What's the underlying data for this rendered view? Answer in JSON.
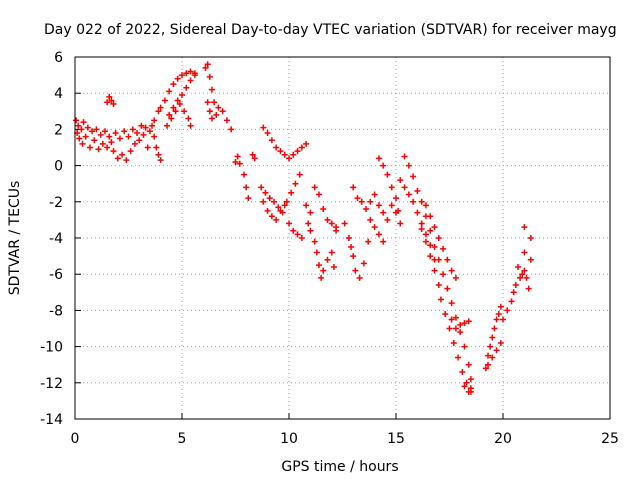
{
  "chart_data": {
    "type": "scatter",
    "title": "Day 022 of 2022, Sidereal Day-to-day VTEC variation (SDTVAR) for receiver mayg",
    "xlabel": "GPS time / hours",
    "ylabel": "SDTVAR / TECUs",
    "xlim": [
      0,
      25
    ],
    "ylim": [
      -14,
      6
    ],
    "xticks": [
      0,
      5,
      10,
      15,
      20,
      25
    ],
    "yticks": [
      -14,
      -12,
      -10,
      -8,
      -6,
      -4,
      -2,
      0,
      2,
      4,
      6
    ],
    "grid": true,
    "marker": "+",
    "color": "#ff0000",
    "series": [
      {
        "name": "SDTVAR",
        "points": [
          [
            0.05,
            2.5
          ],
          [
            0.1,
            1.8
          ],
          [
            0.15,
            2.2
          ],
          [
            0.2,
            1.5
          ],
          [
            0.3,
            2.0
          ],
          [
            0.35,
            1.2
          ],
          [
            0.4,
            2.4
          ],
          [
            0.5,
            1.6
          ],
          [
            0.6,
            2.1
          ],
          [
            0.7,
            1.0
          ],
          [
            0.8,
            1.9
          ],
          [
            0.9,
            1.4
          ],
          [
            1.0,
            2.0
          ],
          [
            1.1,
            0.9
          ],
          [
            1.2,
            1.7
          ],
          [
            1.3,
            1.2
          ],
          [
            1.4,
            1.9
          ],
          [
            1.5,
            1.0
          ],
          [
            1.6,
            1.6
          ],
          [
            1.5,
            3.5
          ],
          [
            1.6,
            3.8
          ],
          [
            1.7,
            3.6
          ],
          [
            1.8,
            3.4
          ],
          [
            1.7,
            1.3
          ],
          [
            1.8,
            0.8
          ],
          [
            1.9,
            1.8
          ],
          [
            2.0,
            0.4
          ],
          [
            2.1,
            1.5
          ],
          [
            2.2,
            0.6
          ],
          [
            2.3,
            1.9
          ],
          [
            2.4,
            0.3
          ],
          [
            2.5,
            1.6
          ],
          [
            2.6,
            0.8
          ],
          [
            2.7,
            2.0
          ],
          [
            2.8,
            1.2
          ],
          [
            2.9,
            1.8
          ],
          [
            3.0,
            1.4
          ],
          [
            3.1,
            2.2
          ],
          [
            3.2,
            1.7
          ],
          [
            3.3,
            2.1
          ],
          [
            3.4,
            1.0
          ],
          [
            3.5,
            1.9
          ],
          [
            3.6,
            2.2
          ],
          [
            3.7,
            1.6
          ],
          [
            3.8,
            1.0
          ],
          [
            3.9,
            0.6
          ],
          [
            4.0,
            0.3
          ],
          [
            3.7,
            2.5
          ],
          [
            3.9,
            3.0
          ],
          [
            4.0,
            3.2
          ],
          [
            4.2,
            3.6
          ],
          [
            4.4,
            4.1
          ],
          [
            4.6,
            4.5
          ],
          [
            4.8,
            4.8
          ],
          [
            5.0,
            5.0
          ],
          [
            5.2,
            5.1
          ],
          [
            5.4,
            5.2
          ],
          [
            5.6,
            5.1
          ],
          [
            4.4,
            2.8
          ],
          [
            4.6,
            3.2
          ],
          [
            4.8,
            3.6
          ],
          [
            5.0,
            3.9
          ],
          [
            5.2,
            4.3
          ],
          [
            5.4,
            4.7
          ],
          [
            5.6,
            5.0
          ],
          [
            4.3,
            2.2
          ],
          [
            4.5,
            2.6
          ],
          [
            4.7,
            3.0
          ],
          [
            4.9,
            3.4
          ],
          [
            5.1,
            3.0
          ],
          [
            5.3,
            2.6
          ],
          [
            5.4,
            2.2
          ],
          [
            6.1,
            5.4
          ],
          [
            6.2,
            5.6
          ],
          [
            6.3,
            4.9
          ],
          [
            6.4,
            4.2
          ],
          [
            6.5,
            3.5
          ],
          [
            6.7,
            3.2
          ],
          [
            6.9,
            3.0
          ],
          [
            7.1,
            2.5
          ],
          [
            7.3,
            2.0
          ],
          [
            6.2,
            3.5
          ],
          [
            6.3,
            3.0
          ],
          [
            6.4,
            2.6
          ],
          [
            6.6,
            2.8
          ],
          [
            7.5,
            0.2
          ],
          [
            7.6,
            0.5
          ],
          [
            7.7,
            0.1
          ],
          [
            7.9,
            -0.5
          ],
          [
            8.0,
            -1.2
          ],
          [
            8.1,
            -1.8
          ],
          [
            8.3,
            0.6
          ],
          [
            8.4,
            0.4
          ],
          [
            8.8,
            2.1
          ],
          [
            9.0,
            1.8
          ],
          [
            9.2,
            1.4
          ],
          [
            9.4,
            1.0
          ],
          [
            9.6,
            0.8
          ],
          [
            9.8,
            0.6
          ],
          [
            10.0,
            0.4
          ],
          [
            10.2,
            0.6
          ],
          [
            10.4,
            0.8
          ],
          [
            10.6,
            1.0
          ],
          [
            10.8,
            1.2
          ],
          [
            8.7,
            -1.2
          ],
          [
            8.9,
            -1.5
          ],
          [
            9.1,
            -1.8
          ],
          [
            9.3,
            -2.0
          ],
          [
            9.5,
            -2.3
          ],
          [
            9.7,
            -2.6
          ],
          [
            9.9,
            -2.0
          ],
          [
            10.1,
            -1.5
          ],
          [
            10.3,
            -1.0
          ],
          [
            10.5,
            -0.5
          ],
          [
            8.8,
            -2.0
          ],
          [
            9.0,
            -2.5
          ],
          [
            9.2,
            -2.8
          ],
          [
            9.4,
            -3.0
          ],
          [
            9.6,
            -2.5
          ],
          [
            9.8,
            -2.2
          ],
          [
            10.0,
            -3.2
          ],
          [
            10.2,
            -3.6
          ],
          [
            10.4,
            -3.8
          ],
          [
            10.6,
            -4.0
          ],
          [
            10.8,
            -2.2
          ],
          [
            11.0,
            -2.6
          ],
          [
            10.9,
            -3.2
          ],
          [
            11.0,
            -3.6
          ],
          [
            11.2,
            -4.2
          ],
          [
            11.3,
            -4.8
          ],
          [
            11.4,
            -5.5
          ],
          [
            11.5,
            -6.2
          ],
          [
            11.6,
            -5.8
          ],
          [
            11.8,
            -5.2
          ],
          [
            12.0,
            -4.8
          ],
          [
            12.1,
            -5.6
          ],
          [
            12.2,
            -3.4
          ],
          [
            11.2,
            -1.2
          ],
          [
            11.4,
            -1.6
          ],
          [
            11.6,
            -2.4
          ],
          [
            11.8,
            -3.0
          ],
          [
            12.0,
            -3.2
          ],
          [
            12.2,
            -3.6
          ],
          [
            12.6,
            -3.2
          ],
          [
            12.8,
            -4.0
          ],
          [
            12.9,
            -4.5
          ],
          [
            13.0,
            -5.0
          ],
          [
            13.1,
            -5.8
          ],
          [
            13.3,
            -6.2
          ],
          [
            13.5,
            -5.4
          ],
          [
            13.7,
            -4.2
          ],
          [
            13.0,
            -1.2
          ],
          [
            13.2,
            -1.8
          ],
          [
            13.4,
            -2.0
          ],
          [
            13.6,
            -2.4
          ],
          [
            13.8,
            -3.0
          ],
          [
            14.0,
            -3.4
          ],
          [
            14.2,
            -3.8
          ],
          [
            14.4,
            -4.2
          ],
          [
            13.8,
            -2.0
          ],
          [
            14.0,
            -1.6
          ],
          [
            14.2,
            -2.2
          ],
          [
            14.4,
            -2.6
          ],
          [
            14.6,
            -3.0
          ],
          [
            14.8,
            -2.2
          ],
          [
            15.0,
            -2.6
          ],
          [
            15.2,
            -3.2
          ],
          [
            14.2,
            0.4
          ],
          [
            14.4,
            0.0
          ],
          [
            14.6,
            -0.5
          ],
          [
            14.8,
            -1.2
          ],
          [
            15.0,
            -1.8
          ],
          [
            15.1,
            -2.5
          ],
          [
            15.2,
            -0.8
          ],
          [
            15.4,
            -1.2
          ],
          [
            15.6,
            -1.6
          ],
          [
            15.8,
            -2.0
          ],
          [
            16.0,
            -2.6
          ],
          [
            16.2,
            -3.2
          ],
          [
            16.4,
            -3.8
          ],
          [
            16.6,
            -4.4
          ],
          [
            16.8,
            -5.2
          ],
          [
            15.4,
            0.5
          ],
          [
            15.6,
            0.0
          ],
          [
            15.8,
            -0.6
          ],
          [
            16.0,
            -1.4
          ],
          [
            16.2,
            -2.0
          ],
          [
            16.4,
            -2.8
          ],
          [
            16.6,
            -3.6
          ],
          [
            16.2,
            -3.5
          ],
          [
            16.4,
            -4.2
          ],
          [
            16.6,
            -5.0
          ],
          [
            16.8,
            -5.8
          ],
          [
            17.0,
            -6.6
          ],
          [
            17.1,
            -7.4
          ],
          [
            17.3,
            -8.2
          ],
          [
            17.5,
            -9.0
          ],
          [
            17.7,
            -9.8
          ],
          [
            17.9,
            -10.6
          ],
          [
            18.1,
            -11.4
          ],
          [
            18.3,
            -12.0
          ],
          [
            18.5,
            -12.5
          ],
          [
            16.8,
            -4.5
          ],
          [
            17.0,
            -5.2
          ],
          [
            17.2,
            -6.0
          ],
          [
            17.4,
            -6.8
          ],
          [
            17.6,
            -7.6
          ],
          [
            17.8,
            -8.4
          ],
          [
            18.0,
            -9.2
          ],
          [
            18.2,
            -10.0
          ],
          [
            18.4,
            -11.0
          ],
          [
            18.5,
            -11.8
          ],
          [
            16.4,
            -2.2
          ],
          [
            16.6,
            -2.8
          ],
          [
            16.8,
            -3.4
          ],
          [
            17.0,
            -4.0
          ],
          [
            17.2,
            -4.6
          ],
          [
            17.4,
            -5.2
          ],
          [
            17.6,
            -5.8
          ],
          [
            17.8,
            -6.2
          ],
          [
            17.6,
            -8.5
          ],
          [
            17.8,
            -9.0
          ],
          [
            18.0,
            -8.8
          ],
          [
            18.2,
            -8.7
          ],
          [
            18.4,
            -8.6
          ],
          [
            18.2,
            -12.2
          ],
          [
            18.4,
            -12.5
          ],
          [
            18.5,
            -12.3
          ],
          [
            19.2,
            -11.2
          ],
          [
            19.3,
            -10.5
          ],
          [
            19.4,
            -10.0
          ],
          [
            19.5,
            -9.5
          ],
          [
            19.6,
            -9.0
          ],
          [
            19.7,
            -8.5
          ],
          [
            19.8,
            -8.2
          ],
          [
            19.9,
            -7.8
          ],
          [
            19.3,
            -11.0
          ],
          [
            19.5,
            -10.6
          ],
          [
            19.7,
            -10.2
          ],
          [
            19.9,
            -9.8
          ],
          [
            20.0,
            -8.5
          ],
          [
            20.2,
            -8.0
          ],
          [
            20.4,
            -7.5
          ],
          [
            20.5,
            -7.0
          ],
          [
            20.6,
            -6.6
          ],
          [
            20.8,
            -6.2
          ],
          [
            21.0,
            -5.8
          ],
          [
            21.1,
            -6.2
          ],
          [
            20.7,
            -5.6
          ],
          [
            20.9,
            -6.0
          ],
          [
            21.0,
            -4.8
          ],
          [
            21.2,
            -6.8
          ],
          [
            21.3,
            -5.2
          ],
          [
            21.0,
            -3.4
          ],
          [
            21.3,
            -4.0
          ]
        ]
      }
    ]
  }
}
